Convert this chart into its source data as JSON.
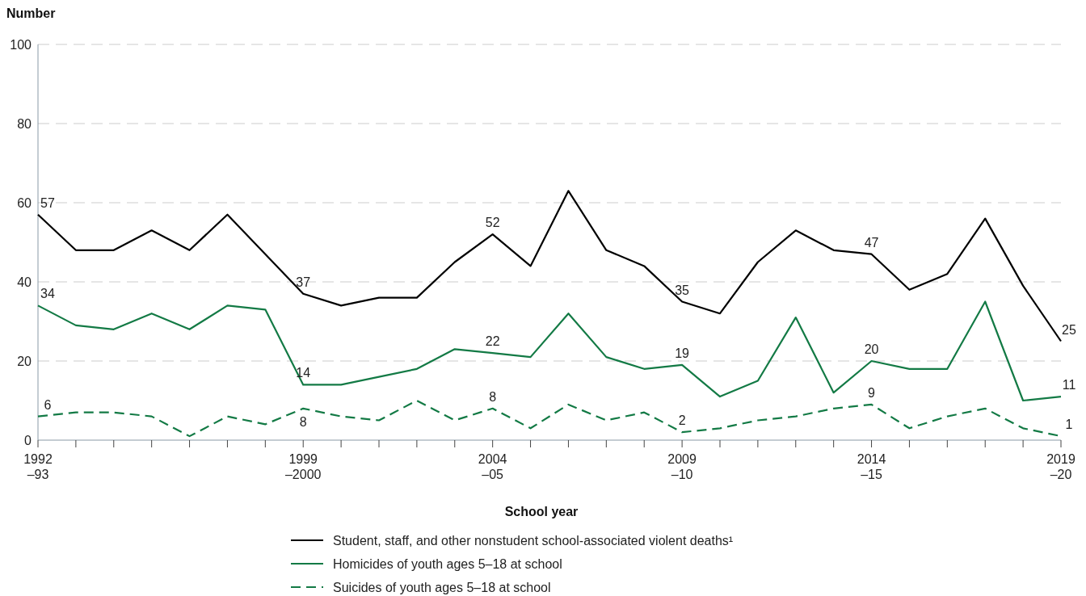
{
  "chart_data": {
    "type": "line",
    "ylabel": "Number",
    "xlabel": "School year",
    "categories": [
      "1992\n–93",
      null,
      null,
      null,
      null,
      null,
      null,
      "1999\n–2000",
      null,
      null,
      null,
      null,
      "2004\n–05",
      null,
      null,
      null,
      null,
      "2009\n–10",
      null,
      null,
      null,
      null,
      "2014\n–15",
      null,
      null,
      null,
      null,
      "2019\n–20"
    ],
    "ylim": [
      0,
      100
    ],
    "yticks": [
      0,
      20,
      40,
      60,
      80,
      100
    ],
    "grid": "y",
    "legend": "bottom",
    "marker": "none",
    "series": [
      {
        "name": "Student, staff, and other nonstudent school-associated violent deaths¹",
        "color": "#000000",
        "line_style": "solid",
        "values": [
          57,
          48,
          48,
          53,
          48,
          57,
          47,
          37,
          34,
          36,
          36,
          45,
          52,
          44,
          63,
          48,
          44,
          35,
          32,
          45,
          53,
          48,
          47,
          38,
          42,
          56,
          39,
          25
        ],
        "value_labels": [
          "57",
          null,
          null,
          null,
          null,
          null,
          null,
          "37",
          null,
          null,
          null,
          null,
          "52",
          null,
          null,
          null,
          null,
          "35",
          null,
          null,
          null,
          null,
          "47",
          null,
          null,
          null,
          null,
          "25"
        ]
      },
      {
        "name": "Homicides of youth ages 5–18 at school",
        "color": "#137a45",
        "line_style": "solid",
        "values": [
          34,
          29,
          28,
          32,
          28,
          34,
          33,
          14,
          14,
          16,
          18,
          23,
          22,
          21,
          32,
          21,
          18,
          19,
          11,
          15,
          31,
          12,
          20,
          18,
          18,
          35,
          10,
          11
        ],
        "value_labels": [
          "34",
          null,
          null,
          null,
          null,
          null,
          null,
          "14",
          null,
          null,
          null,
          null,
          "22",
          null,
          null,
          null,
          null,
          "19",
          null,
          null,
          null,
          null,
          "20",
          null,
          null,
          null,
          null,
          "11"
        ]
      },
      {
        "name": "Suicides of youth ages 5–18 at school",
        "color": "#137a45",
        "line_style": "dashed",
        "values": [
          6,
          7,
          7,
          6,
          1,
          6,
          4,
          8,
          6,
          5,
          10,
          5,
          8,
          3,
          9,
          5,
          7,
          2,
          3,
          5,
          6,
          8,
          9,
          3,
          6,
          8,
          3,
          1
        ],
        "value_labels": [
          "6",
          null,
          null,
          null,
          null,
          null,
          null,
          "8",
          null,
          null,
          null,
          null,
          "8",
          null,
          null,
          null,
          null,
          "2",
          null,
          null,
          null,
          null,
          "9",
          null,
          null,
          null,
          null,
          "1"
        ]
      }
    ]
  }
}
